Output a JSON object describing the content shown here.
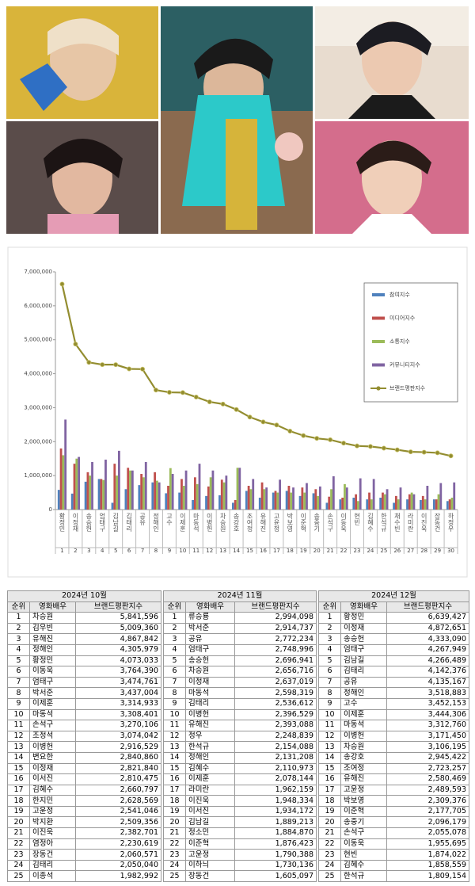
{
  "chart_data": {
    "type": "bar-line",
    "categories": [
      "황정민",
      "이정재",
      "송승헌",
      "엄태구",
      "김남길",
      "김태리",
      "공유",
      "정해인",
      "고수",
      "이제훈",
      "마동석",
      "이병헌",
      "차승원",
      "송강호",
      "조여정",
      "유해진",
      "고윤정",
      "박보영",
      "이준혁",
      "송중기",
      "손석구",
      "이동욱",
      "현빈",
      "김혜수",
      "한석규",
      "채수빈",
      "라미란",
      "이진욱",
      "장동건",
      "하정우"
    ],
    "ranks": [
      1,
      2,
      3,
      4,
      5,
      6,
      7,
      8,
      9,
      10,
      11,
      12,
      13,
      14,
      15,
      16,
      17,
      18,
      19,
      20,
      21,
      22,
      23,
      24,
      25,
      26,
      27,
      28,
      29,
      30
    ],
    "series": [
      {
        "name": "참여지수",
        "color": "#4f81bd",
        "values": [
          580000,
          470000,
          820000,
          900000,
          200000,
          600000,
          720000,
          800000,
          480000,
          500000,
          280000,
          400000,
          420000,
          200000,
          550000,
          350000,
          500000,
          550000,
          400000,
          480000,
          200000,
          300000,
          350000,
          300000,
          350000,
          200000,
          300000,
          280000,
          300000,
          250000
        ]
      },
      {
        "name": "미디어지수",
        "color": "#c0504d",
        "values": [
          1800000,
          1350000,
          1100000,
          900000,
          1350000,
          1230000,
          1050000,
          1100000,
          700000,
          900000,
          950000,
          680000,
          880000,
          280000,
          700000,
          800000,
          550000,
          700000,
          650000,
          600000,
          380000,
          350000,
          450000,
          500000,
          500000,
          400000,
          450000,
          400000,
          300000,
          300000
        ]
      },
      {
        "name": "소통지수",
        "color": "#9bbb59",
        "values": [
          1600000,
          1500000,
          1000000,
          870000,
          1000000,
          1150000,
          950000,
          850000,
          1220000,
          700000,
          750000,
          950000,
          800000,
          1230000,
          600000,
          600000,
          500000,
          500000,
          500000,
          400000,
          600000,
          750000,
          250000,
          300000,
          450000,
          300000,
          500000,
          300000,
          450000,
          350000
        ]
      },
      {
        "name": "커뮤니티지수",
        "color": "#8064a2",
        "values": [
          2650000,
          1550000,
          1400000,
          1470000,
          1730000,
          1150000,
          1400000,
          800000,
          1050000,
          1150000,
          1350000,
          1150000,
          1000000,
          1230000,
          900000,
          650000,
          880000,
          650000,
          780000,
          680000,
          980000,
          650000,
          920000,
          900000,
          600000,
          650000,
          450000,
          700000,
          780000,
          800000
        ]
      },
      {
        "name": "브랜드평판지수",
        "color": "#938d30",
        "type": "line",
        "values": [
          6639427,
          4872651,
          4333090,
          4267949,
          4266489,
          4142376,
          4135167,
          3518883,
          3452153,
          3444306,
          3312760,
          3171450,
          3106195,
          2945422,
          2723257,
          2580469,
          2489593,
          2309376,
          2177705,
          2096179,
          2055078,
          1955695,
          1874022,
          1858559,
          1809154,
          1760000,
          1700000,
          1690000,
          1670000,
          1580000
        ]
      }
    ],
    "ylim": [
      0,
      7000000
    ],
    "yticks": [
      0,
      {
        "value": 1000000,
        "label": "1,000,000"
      },
      {
        "value": 2000000,
        "label": "2,000,000"
      },
      {
        "value": 3000000,
        "label": "3,000,000"
      },
      {
        "value": 4000000,
        "label": "4,000,000"
      },
      {
        "value": 5000000,
        "label": "5,000,000"
      },
      {
        "value": 6000000,
        "label": "6,000,000"
      },
      {
        "value": 7000000,
        "label": "7,000,000"
      }
    ],
    "grid": false,
    "legend": "top-right"
  },
  "table": {
    "headers": [
      "순위",
      "영화배우",
      "브랜드평판지수"
    ],
    "months": [
      {
        "title": "2024년 10월",
        "rows": [
          [
            1,
            "차승원",
            "5,841,596"
          ],
          [
            2,
            "김우빈",
            "5,009,360"
          ],
          [
            3,
            "유해진",
            "4,867,842"
          ],
          [
            4,
            "정해인",
            "4,305,979"
          ],
          [
            5,
            "황정민",
            "4,073,033"
          ],
          [
            6,
            "이동욱",
            "3,764,390"
          ],
          [
            7,
            "엄태구",
            "3,474,761"
          ],
          [
            8,
            "박서준",
            "3,437,004"
          ],
          [
            9,
            "이제훈",
            "3,314,933"
          ],
          [
            10,
            "마동석",
            "3,308,401"
          ],
          [
            11,
            "손석구",
            "3,270,106"
          ],
          [
            12,
            "조정석",
            "3,074,042"
          ],
          [
            13,
            "이병헌",
            "2,916,529"
          ],
          [
            14,
            "변요한",
            "2,840,860"
          ],
          [
            15,
            "이정재",
            "2,821,840"
          ],
          [
            16,
            "이서진",
            "2,810,475"
          ],
          [
            17,
            "김혜수",
            "2,660,797"
          ],
          [
            18,
            "한지민",
            "2,628,569"
          ],
          [
            19,
            "고윤정",
            "2,541,046"
          ],
          [
            20,
            "박지환",
            "2,509,356"
          ],
          [
            21,
            "이진욱",
            "2,382,701"
          ],
          [
            22,
            "염정아",
            "2,230,619"
          ],
          [
            23,
            "장동건",
            "2,060,571"
          ],
          [
            24,
            "김태리",
            "2,050,040"
          ],
          [
            25,
            "이종석",
            "1,982,992"
          ]
        ]
      },
      {
        "title": "2024년 11월",
        "rows": [
          [
            1,
            "류승룡",
            "2,994,098"
          ],
          [
            2,
            "박서준",
            "2,914,737"
          ],
          [
            3,
            "공유",
            "2,772,234"
          ],
          [
            4,
            "엄태구",
            "2,748,996"
          ],
          [
            5,
            "송승헌",
            "2,696,941"
          ],
          [
            6,
            "차승원",
            "2,656,716"
          ],
          [
            7,
            "이정재",
            "2,637,019"
          ],
          [
            8,
            "마동석",
            "2,598,319"
          ],
          [
            9,
            "김태리",
            "2,536,612"
          ],
          [
            10,
            "이병헌",
            "2,396,529"
          ],
          [
            11,
            "유해진",
            "2,393,088"
          ],
          [
            12,
            "정우",
            "2,248,839"
          ],
          [
            13,
            "한석규",
            "2,154,088"
          ],
          [
            14,
            "정해인",
            "2,131,208"
          ],
          [
            15,
            "김혜수",
            "2,110,973"
          ],
          [
            16,
            "이제훈",
            "2,078,144"
          ],
          [
            17,
            "라미란",
            "1,962,159"
          ],
          [
            18,
            "이진욱",
            "1,948,334"
          ],
          [
            19,
            "이서진",
            "1,934,172"
          ],
          [
            20,
            "김남길",
            "1,889,213"
          ],
          [
            21,
            "정소민",
            "1,884,870"
          ],
          [
            22,
            "이준혁",
            "1,876,423"
          ],
          [
            23,
            "고윤정",
            "1,790,388"
          ],
          [
            24,
            "이하늬",
            "1,730,136"
          ],
          [
            25,
            "장동건",
            "1,605,097"
          ]
        ]
      },
      {
        "title": "2024년 12월",
        "rows": [
          [
            1,
            "황정민",
            "6,639,427"
          ],
          [
            2,
            "이정재",
            "4,872,651"
          ],
          [
            3,
            "송승헌",
            "4,333,090"
          ],
          [
            4,
            "엄태구",
            "4,267,949"
          ],
          [
            5,
            "김남길",
            "4,266,489"
          ],
          [
            6,
            "김태리",
            "4,142,376"
          ],
          [
            7,
            "공유",
            "4,135,167"
          ],
          [
            8,
            "정해인",
            "3,518,883"
          ],
          [
            9,
            "고수",
            "3,452,153"
          ],
          [
            10,
            "이제훈",
            "3,444,306"
          ],
          [
            11,
            "마동석",
            "3,312,760"
          ],
          [
            12,
            "이병헌",
            "3,171,450"
          ],
          [
            13,
            "차승원",
            "3,106,195"
          ],
          [
            14,
            "송강호",
            "2,945,422"
          ],
          [
            15,
            "조여정",
            "2,723,257"
          ],
          [
            16,
            "유해진",
            "2,580,469"
          ],
          [
            17,
            "고윤정",
            "2,489,593"
          ],
          [
            18,
            "박보영",
            "2,309,376"
          ],
          [
            19,
            "이준혁",
            "2,177,705"
          ],
          [
            20,
            "송중기",
            "2,096,179"
          ],
          [
            21,
            "손석구",
            "2,055,078"
          ],
          [
            22,
            "이동욱",
            "1,955,695"
          ],
          [
            23,
            "현빈",
            "1,874,022"
          ],
          [
            24,
            "김혜수",
            "1,858,559"
          ],
          [
            25,
            "한석규",
            "1,809,154"
          ]
        ]
      }
    ]
  }
}
